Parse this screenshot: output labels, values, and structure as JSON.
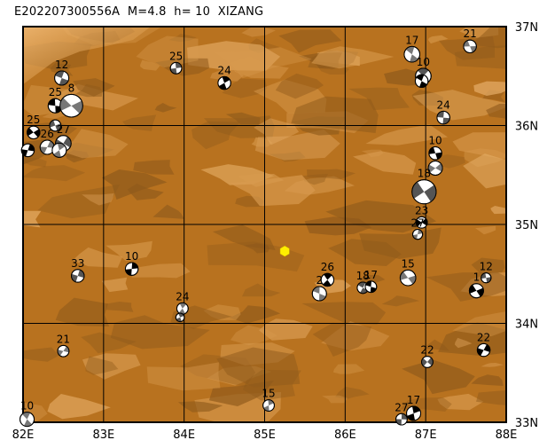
{
  "title": "E202207300556A  M=4.8  h= 10  XIZANG",
  "colors": {
    "terrain_base": "#b8721f",
    "terrain_dark": "#8f5a1b",
    "terrain_light": "#d89a4e",
    "terrain_highlight": "#e8b06a",
    "grid": "#000000",
    "epicenter": "#ffee00"
  },
  "map": {
    "lon_range": [
      82,
      88
    ],
    "lat_range": [
      33,
      37
    ],
    "lon_ticks": [
      "82E",
      "83E",
      "84E",
      "85E",
      "86E",
      "87E",
      "88E"
    ],
    "lat_ticks": [
      "37N",
      "36N",
      "35N",
      "34N",
      "33N"
    ]
  },
  "epicenter": {
    "lon": 85.25,
    "lat": 34.73,
    "marker": "hexagon",
    "color": "#ffee00"
  },
  "mechanisms": [
    {
      "label": "12",
      "lon": 82.48,
      "lat": 36.48,
      "mag": 1.0
    },
    {
      "label": "25",
      "lon": 82.4,
      "lat": 36.2,
      "mag": 1.0
    },
    {
      "label": "8",
      "lon": 82.6,
      "lat": 36.2,
      "mag": 1.6
    },
    {
      "label": "",
      "lon": 82.4,
      "lat": 36.0,
      "mag": 0.8
    },
    {
      "label": "25",
      "lon": 82.13,
      "lat": 35.93,
      "mag": 0.9
    },
    {
      "label": "26",
      "lon": 82.3,
      "lat": 35.78,
      "mag": 1.0
    },
    {
      "label": "27",
      "lon": 82.5,
      "lat": 35.82,
      "mag": 1.1
    },
    {
      "label": "",
      "lon": 82.06,
      "lat": 35.75,
      "mag": 0.9
    },
    {
      "label": "",
      "lon": 82.45,
      "lat": 35.75,
      "mag": 1.0
    },
    {
      "label": "25",
      "lon": 83.9,
      "lat": 36.58,
      "mag": 0.8
    },
    {
      "label": "24",
      "lon": 84.5,
      "lat": 36.43,
      "mag": 0.9
    },
    {
      "label": "17",
      "lon": 86.83,
      "lat": 36.72,
      "mag": 1.1
    },
    {
      "label": "10",
      "lon": 86.97,
      "lat": 36.5,
      "mag": 1.1
    },
    {
      "label": "",
      "lon": 86.95,
      "lat": 36.45,
      "mag": 0.9
    },
    {
      "label": "21",
      "lon": 87.55,
      "lat": 36.8,
      "mag": 0.9
    },
    {
      "label": "24",
      "lon": 87.22,
      "lat": 36.08,
      "mag": 0.9
    },
    {
      "label": "10",
      "lon": 87.12,
      "lat": 35.72,
      "mag": 0.9
    },
    {
      "label": "",
      "lon": 87.12,
      "lat": 35.57,
      "mag": 1.0
    },
    {
      "label": "18",
      "lon": 86.98,
      "lat": 35.33,
      "mag": 1.7
    },
    {
      "label": "23",
      "lon": 86.95,
      "lat": 35.02,
      "mag": 0.8
    },
    {
      "label": "27",
      "lon": 86.9,
      "lat": 34.9,
      "mag": 0.7
    },
    {
      "label": "33",
      "lon": 82.68,
      "lat": 34.48,
      "mag": 0.9
    },
    {
      "label": "10",
      "lon": 83.35,
      "lat": 34.55,
      "mag": 0.9
    },
    {
      "label": "24",
      "lon": 83.98,
      "lat": 34.15,
      "mag": 0.8
    },
    {
      "label": "",
      "lon": 83.95,
      "lat": 34.06,
      "mag": 0.6
    },
    {
      "label": "26",
      "lon": 85.78,
      "lat": 34.44,
      "mag": 0.9
    },
    {
      "label": "2",
      "lon": 85.68,
      "lat": 34.3,
      "mag": 1.0
    },
    {
      "label": "18",
      "lon": 86.22,
      "lat": 34.36,
      "mag": 0.8
    },
    {
      "label": "17",
      "lon": 86.32,
      "lat": 34.37,
      "mag": 0.8
    },
    {
      "label": "15",
      "lon": 86.78,
      "lat": 34.46,
      "mag": 1.1
    },
    {
      "label": "12",
      "lon": 87.75,
      "lat": 34.46,
      "mag": 0.7
    },
    {
      "label": "1",
      "lon": 87.63,
      "lat": 34.33,
      "mag": 1.0
    },
    {
      "label": "21",
      "lon": 82.5,
      "lat": 33.72,
      "mag": 0.8
    },
    {
      "label": "22",
      "lon": 87.02,
      "lat": 33.61,
      "mag": 0.8
    },
    {
      "label": "22",
      "lon": 87.72,
      "lat": 33.73,
      "mag": 0.9
    },
    {
      "label": "15",
      "lon": 85.05,
      "lat": 33.17,
      "mag": 0.8
    },
    {
      "label": "27",
      "lon": 86.7,
      "lat": 33.03,
      "mag": 0.8
    },
    {
      "label": "17",
      "lon": 86.85,
      "lat": 33.09,
      "mag": 1.0
    },
    {
      "label": "10",
      "lon": 82.05,
      "lat": 33.03,
      "mag": 1.0
    }
  ]
}
